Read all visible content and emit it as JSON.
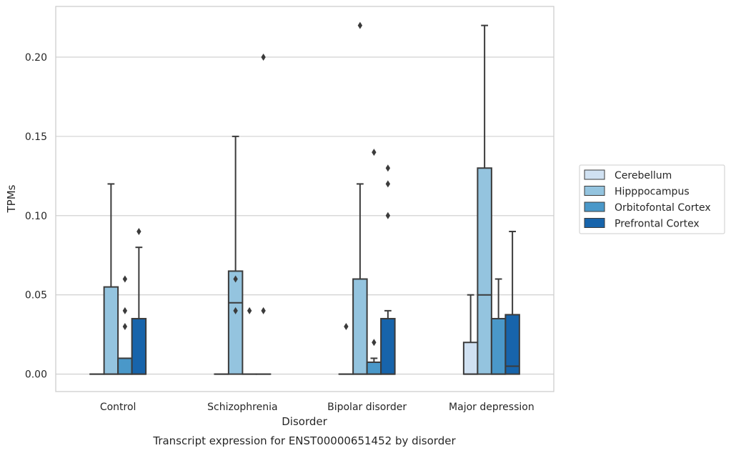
{
  "chart_data": {
    "type": "box",
    "title": "Transcript expression for ENST00000651452 by disorder",
    "xlabel": "Disorder",
    "ylabel": "TPMs",
    "ylim": [
      -0.011,
      0.232
    ],
    "yticks": [
      "0.00",
      "0.05",
      "0.10",
      "0.15",
      "0.20"
    ],
    "ytick_values": [
      0.0,
      0.05,
      0.1,
      0.15,
      0.2
    ],
    "grid": "y",
    "legend_position": "right",
    "categories": [
      "Control",
      "Schizophrenia",
      "Bipolar disorder",
      "Major depression"
    ],
    "series": [
      {
        "name": "Cerebellum",
        "color": "#d0e1f2",
        "boxes": [
          {
            "q1": 0,
            "median": 0,
            "q3": 0,
            "whislo": 0,
            "whishi": 0,
            "fliers": []
          },
          {
            "q1": 0,
            "median": 0,
            "q3": 0,
            "whislo": 0,
            "whishi": 0,
            "fliers": []
          },
          {
            "q1": 0,
            "median": 0,
            "q3": 0,
            "whislo": 0,
            "whishi": 0,
            "fliers": [
              0.03
            ]
          },
          {
            "q1": 0,
            "median": 0,
            "q3": 0.02,
            "whislo": 0,
            "whishi": 0.05,
            "fliers": []
          }
        ]
      },
      {
        "name": "Hipppocampus",
        "color": "#94c4df",
        "boxes": [
          {
            "q1": 0,
            "median": 0,
            "q3": 0.055,
            "whislo": 0,
            "whishi": 0.12,
            "fliers": []
          },
          {
            "q1": 0,
            "median": 0.045,
            "q3": 0.065,
            "whislo": 0,
            "whishi": 0.15,
            "fliers": [
              0.06,
              0.04
            ]
          },
          {
            "q1": 0,
            "median": 0,
            "q3": 0.06,
            "whislo": 0,
            "whishi": 0.12,
            "fliers": [
              0.22
            ]
          },
          {
            "q1": 0,
            "median": 0.05,
            "q3": 0.13,
            "whislo": 0,
            "whishi": 0.22,
            "fliers": []
          }
        ]
      },
      {
        "name": "Orbitofontal Cortex",
        "color": "#4a98c9",
        "boxes": [
          {
            "q1": 0,
            "median": 0,
            "q3": 0.01,
            "whislo": 0,
            "whishi": 0.01,
            "fliers": [
              0.06,
              0.04,
              0.03
            ]
          },
          {
            "q1": 0,
            "median": 0,
            "q3": 0,
            "whislo": 0,
            "whishi": 0,
            "fliers": [
              0.04
            ]
          },
          {
            "q1": 0,
            "median": 0,
            "q3": 0.0075,
            "whislo": 0,
            "whishi": 0.01,
            "fliers": [
              0.14,
              0.02
            ]
          },
          {
            "q1": 0,
            "median": 0,
            "q3": 0.035,
            "whislo": 0,
            "whishi": 0.06,
            "fliers": []
          }
        ]
      },
      {
        "name": "Prefrontal Cortex",
        "color": "#1764ab",
        "boxes": [
          {
            "q1": 0,
            "median": 0,
            "q3": 0.035,
            "whislo": 0,
            "whishi": 0.08,
            "fliers": [
              0.09
            ]
          },
          {
            "q1": 0,
            "median": 0,
            "q3": 0,
            "whislo": 0,
            "whishi": 0,
            "fliers": [
              0.2,
              0.04
            ]
          },
          {
            "q1": 0,
            "median": 0,
            "q3": 0.035,
            "whislo": 0,
            "whishi": 0.04,
            "fliers": [
              0.13,
              0.12,
              0.1
            ]
          },
          {
            "q1": 0,
            "median": 0.005,
            "q3": 0.0375,
            "whislo": 0,
            "whishi": 0.09,
            "fliers": []
          }
        ]
      }
    ]
  }
}
